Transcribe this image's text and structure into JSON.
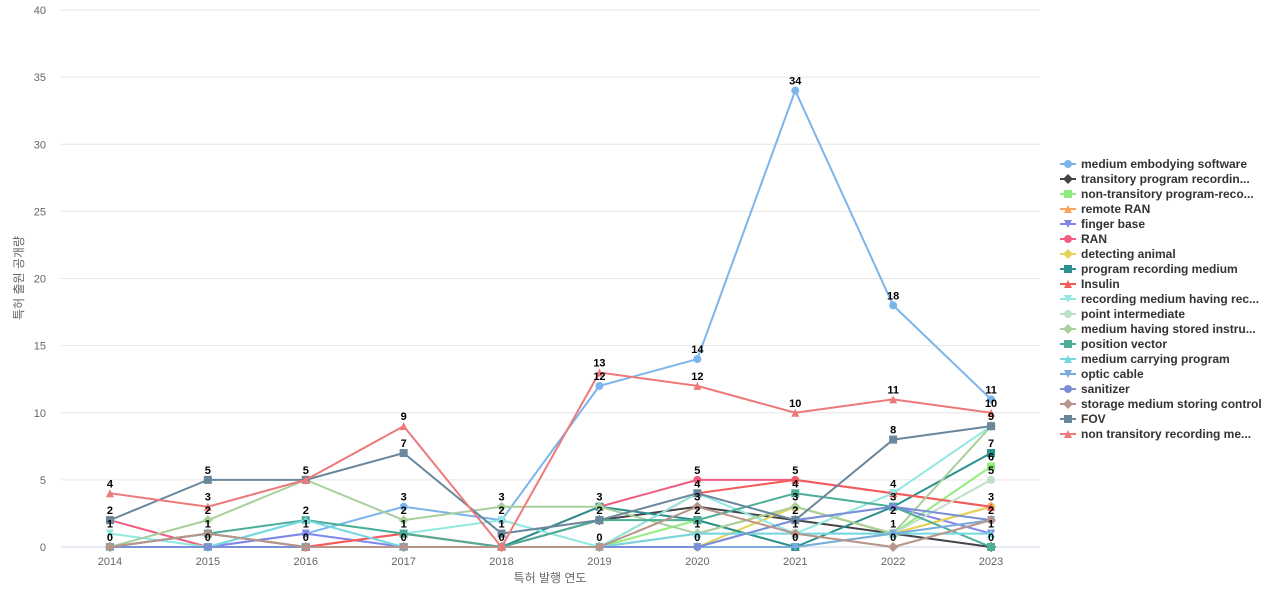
{
  "chart_data": {
    "type": "line",
    "title": "",
    "xlabel": "특허 발행 연도",
    "ylabel": "특허 출원 공개량",
    "x": [
      "2014",
      "2015",
      "2016",
      "2017",
      "2018",
      "2019",
      "2020",
      "2021",
      "2022",
      "2023"
    ],
    "ylim": [
      0,
      40
    ],
    "yticks": [
      0,
      5,
      10,
      15,
      20,
      25,
      30,
      35,
      40
    ],
    "grid": true,
    "legend_position": "right",
    "series": [
      {
        "name": "medium embodying software",
        "color": "#7cb5ec",
        "marker": "circle",
        "values": [
          0,
          0,
          1,
          3,
          2,
          12,
          14,
          34,
          18,
          11
        ]
      },
      {
        "name": "transitory program recordin...",
        "color": "#434348",
        "marker": "diamond",
        "values": [
          0,
          1,
          0,
          0,
          0,
          2,
          3,
          2,
          1,
          0
        ]
      },
      {
        "name": "non-transitory program-reco...",
        "color": "#90ed7d",
        "marker": "square",
        "values": [
          0,
          0,
          0,
          0,
          0,
          0,
          2,
          0,
          1,
          6
        ]
      },
      {
        "name": "remote RAN",
        "color": "#f7a35c",
        "marker": "triangle",
        "values": [
          0,
          0,
          0,
          0,
          0,
          0,
          1,
          3,
          1,
          3
        ]
      },
      {
        "name": "finger base",
        "color": "#8085e9",
        "marker": "triangle-down",
        "values": [
          0,
          0,
          1,
          0,
          0,
          0,
          0,
          2,
          3,
          1
        ]
      },
      {
        "name": "RAN",
        "color": "#f15c80",
        "marker": "circle",
        "values": [
          2,
          0,
          0,
          1,
          0,
          3,
          5,
          5,
          4,
          3
        ]
      },
      {
        "name": "detecting animal",
        "color": "#e4d354",
        "marker": "diamond",
        "values": [
          0,
          0,
          0,
          0,
          0,
          0,
          0,
          3,
          1,
          3
        ]
      },
      {
        "name": "program recording medium",
        "color": "#2b908f",
        "marker": "square",
        "values": [
          0,
          0,
          0,
          0,
          0,
          3,
          2,
          0,
          3,
          7
        ]
      },
      {
        "name": "Insulin",
        "color": "#f45b5b",
        "marker": "triangle",
        "values": [
          0,
          0,
          0,
          1,
          0,
          0,
          4,
          5,
          4,
          3
        ]
      },
      {
        "name": "recording medium having rec...",
        "color": "#91e8e1",
        "marker": "triangle-down",
        "values": [
          1,
          0,
          2,
          1,
          2,
          0,
          4,
          1,
          4,
          9
        ]
      },
      {
        "name": "point intermediate",
        "color": "#bfe0c6",
        "marker": "circle",
        "values": [
          0,
          0,
          0,
          0,
          0,
          0,
          1,
          1,
          1,
          5
        ]
      },
      {
        "name": "medium having stored instru...",
        "color": "#a9cf9c",
        "marker": "diamond",
        "values": [
          0,
          2,
          5,
          2,
          3,
          3,
          1,
          3,
          1,
          9
        ]
      },
      {
        "name": "position vector",
        "color": "#4dae98",
        "marker": "square",
        "values": [
          0,
          1,
          2,
          1,
          0,
          2,
          2,
          4,
          3,
          0
        ]
      },
      {
        "name": "medium carrying program",
        "color": "#76d7e1",
        "marker": "triangle",
        "values": [
          0,
          0,
          2,
          0,
          0,
          0,
          1,
          1,
          1,
          1
        ]
      },
      {
        "name": "optic cable",
        "color": "#7aabdc",
        "marker": "triangle-down",
        "values": [
          0,
          0,
          0,
          0,
          0,
          0,
          0,
          0,
          1,
          2
        ]
      },
      {
        "name": "sanitizer",
        "color": "#7b8fd6",
        "marker": "circle",
        "values": [
          0,
          0,
          0,
          0,
          0,
          0,
          0,
          2,
          3,
          2
        ]
      },
      {
        "name": "storage medium storing control",
        "color": "#b8958a",
        "marker": "diamond",
        "values": [
          0,
          1,
          0,
          0,
          0,
          0,
          3,
          1,
          0,
          2
        ]
      },
      {
        "name": "FOV",
        "color": "#6a879c",
        "marker": "square",
        "values": [
          2,
          5,
          5,
          7,
          1,
          2,
          4,
          2,
          8,
          9
        ]
      },
      {
        "name": "non transitory recording me...",
        "color": "#ed7a7a",
        "marker": "triangle",
        "values": [
          4,
          3,
          5,
          9,
          0,
          13,
          12,
          10,
          11,
          10
        ]
      }
    ],
    "data_labels": [
      {
        "x": "2014",
        "values": [
          "4",
          "2",
          "1",
          "0"
        ]
      },
      {
        "x": "2015",
        "values": [
          "5",
          "3",
          "2",
          "1",
          "0"
        ]
      },
      {
        "x": "2016",
        "values": [
          "5",
          "2",
          "1",
          "0"
        ]
      },
      {
        "x": "2017",
        "values": [
          "9",
          "7",
          "3",
          "2",
          "1",
          "0"
        ]
      },
      {
        "x": "2018",
        "values": [
          "3",
          "2",
          "1",
          "0"
        ]
      },
      {
        "x": "2019",
        "values": [
          "13",
          "12",
          "3",
          "2",
          "0"
        ]
      },
      {
        "x": "2020",
        "values": [
          "14",
          "12",
          "5",
          "4",
          "3",
          "2",
          "1",
          "0"
        ]
      },
      {
        "x": "2021",
        "values": [
          "34",
          "10",
          "5",
          "4",
          "3",
          "2",
          "1",
          "0"
        ]
      },
      {
        "x": "2022",
        "values": [
          "18",
          "11",
          "8",
          "4",
          "3",
          "2",
          "1",
          "0"
        ]
      },
      {
        "x": "2023",
        "values": [
          "11",
          "10",
          "9",
          "7",
          "6",
          "5",
          "3",
          "2",
          "1",
          "0"
        ]
      }
    ]
  }
}
